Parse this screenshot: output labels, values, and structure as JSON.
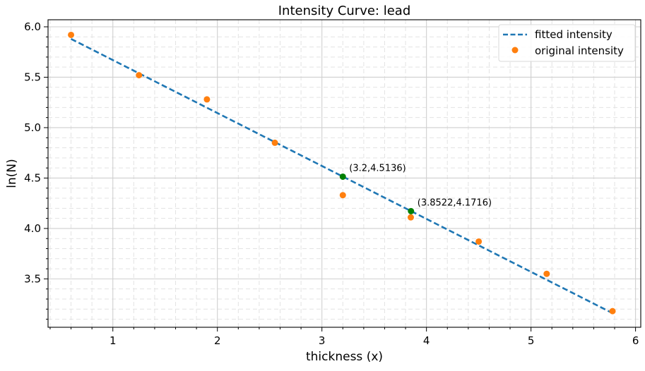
{
  "chart_data": {
    "type": "scatter",
    "title": "Intensity Curve: lead",
    "xlabel": "thickness (x)",
    "ylabel": "ln(N)",
    "xlim": [
      0.38,
      6.05
    ],
    "ylim": [
      3.02,
      6.07
    ],
    "grid": true,
    "x_ticks": [
      {
        "value": 1,
        "label": "1"
      },
      {
        "value": 2,
        "label": "2"
      },
      {
        "value": 3,
        "label": "3"
      },
      {
        "value": 4,
        "label": "4"
      },
      {
        "value": 5,
        "label": "5"
      },
      {
        "value": 6,
        "label": "6"
      }
    ],
    "y_ticks": [
      {
        "value": 3.5,
        "label": "3.5"
      },
      {
        "value": 4.0,
        "label": "4.0"
      },
      {
        "value": 4.5,
        "label": "4.5"
      },
      {
        "value": 5.0,
        "label": "5.0"
      },
      {
        "value": 5.5,
        "label": "5.5"
      },
      {
        "value": 6.0,
        "label": "6.0"
      }
    ],
    "series": [
      {
        "name": "fitted intensity",
        "kind": "line",
        "style": "dashed",
        "color": "#1f77b4",
        "x": [
          0.6,
          5.78
        ],
        "y": [
          5.88,
          3.16
        ]
      },
      {
        "name": "original intensity",
        "kind": "scatter",
        "color": "#ff7f0e",
        "x": [
          0.6,
          1.25,
          1.9,
          2.55,
          3.2,
          3.85,
          4.5,
          5.15,
          5.78
        ],
        "y": [
          5.92,
          5.52,
          5.28,
          4.85,
          4.33,
          4.11,
          3.87,
          3.55,
          3.18
        ]
      }
    ],
    "highlight_points": {
      "color": "#008000",
      "points": [
        {
          "x": 3.2,
          "y": 4.5136,
          "label": "(3.2,4.5136)"
        },
        {
          "x": 3.8522,
          "y": 4.1716,
          "label": "(3.8522,4.1716)"
        }
      ]
    },
    "legend": {
      "position": "top-right",
      "entries": [
        "fitted intensity",
        "original intensity"
      ]
    }
  }
}
